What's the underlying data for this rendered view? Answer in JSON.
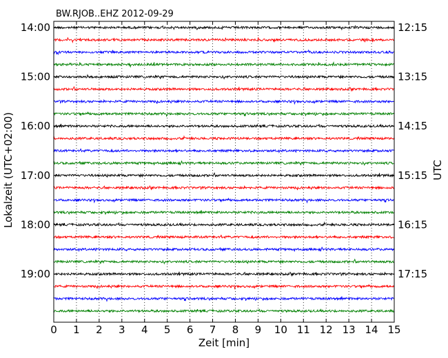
{
  "chart_data": {
    "type": "line",
    "title": "BW.RJOB..EHZ 2012-09-29",
    "xlabel": "Zeit  [min]",
    "ylabel_left": "Lokalzeit (UTC+02:00)",
    "ylabel_right": "UTC",
    "xlim": [
      0,
      15
    ],
    "x_ticks": [
      "0",
      "1",
      "2",
      "3",
      "4",
      "5",
      "6",
      "7",
      "8",
      "9",
      "10",
      "11",
      "12",
      "13",
      "14",
      "15"
    ],
    "vertical_gridlines": true,
    "gridline_style": "dotted",
    "left_ticks": [
      "14:00",
      "15:00",
      "16:00",
      "17:00",
      "18:00",
      "19:00"
    ],
    "right_ticks": [
      "12:15",
      "13:15",
      "14:15",
      "15:15",
      "16:15",
      "17:15"
    ],
    "trace_count": 24,
    "trace_interval_min": 15,
    "trace_colors": [
      "#000000",
      "#ff0000",
      "#0000ff",
      "#008000"
    ]
  }
}
